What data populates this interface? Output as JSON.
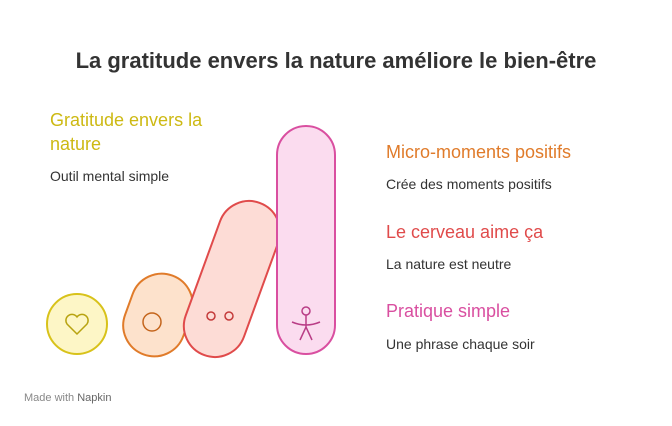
{
  "title": "La gratitude envers la nature améliore le bien-être",
  "items": [
    {
      "title": "Gratitude envers la nature",
      "description": "Outil mental simple"
    },
    {
      "title": "Micro-moments positifs",
      "description": "Crée des moments positifs"
    },
    {
      "title": "Le cerveau aime ça",
      "description": "La nature est neutre"
    },
    {
      "title": "Pratique simple",
      "description": "Une phrase chaque soir"
    }
  ],
  "footer": {
    "prefix": "Made with",
    "brand": "Napkin"
  }
}
